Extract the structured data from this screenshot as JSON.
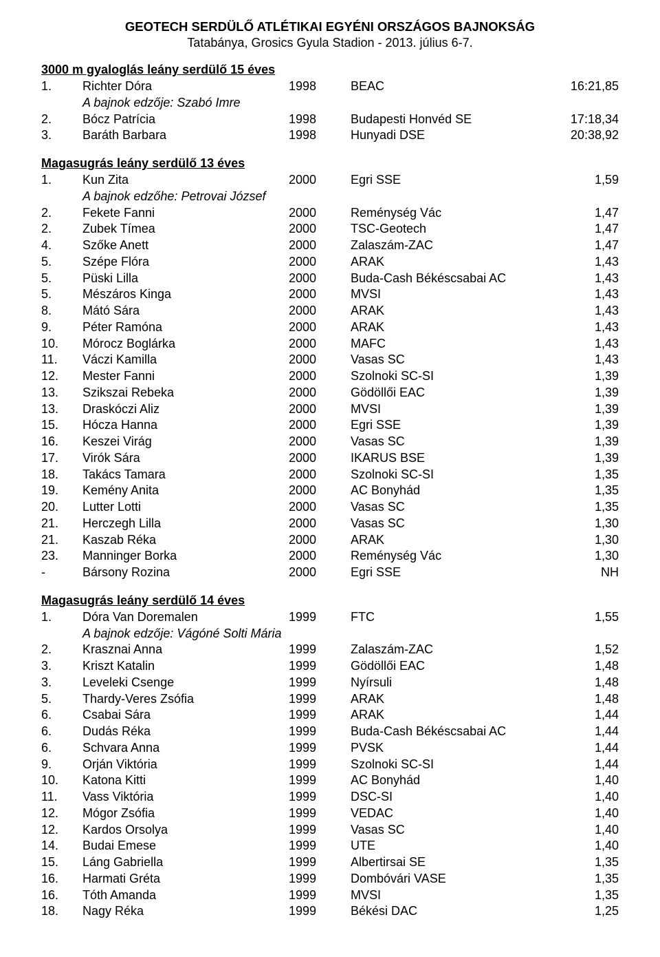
{
  "header": {
    "title": "GEOTECH SERDÜLŐ ATLÉTIKAI EGYÉNI ORSZÁGOS BAJNOKSÁG",
    "subtitle": "Tatabánya, Grosics Gyula Stadion - 2013. július 6-7."
  },
  "sections": [
    {
      "heading": "3000 m gyaloglás leány serdülő 15 éves",
      "rows": [
        {
          "place": "1.",
          "name": "Richter Dóra",
          "year": "1998",
          "club": "BEAC",
          "result": "16:21,85",
          "coach": "A bajnok edzője: Szabó Imre"
        },
        {
          "place": "2.",
          "name": "Bócz Patrícia",
          "year": "1998",
          "club": "Budapesti Honvéd SE",
          "result": "17:18,34"
        },
        {
          "place": "3.",
          "name": "Baráth Barbara",
          "year": "1998",
          "club": "Hunyadi DSE",
          "result": "20:38,92"
        }
      ]
    },
    {
      "heading": "Magasugrás leány serdülő 13 éves",
      "rows": [
        {
          "place": "1.",
          "name": "Kun Zita",
          "year": "2000",
          "club": "Egri SSE",
          "result": "1,59",
          "coach": "A bajnok edzőhe: Petrovai József"
        },
        {
          "place": "2.",
          "name": "Fekete Fanni",
          "year": "2000",
          "club": "Reménység Vác",
          "result": "1,47"
        },
        {
          "place": "2.",
          "name": "Zubek Tímea",
          "year": "2000",
          "club": "TSC-Geotech",
          "result": "1,47"
        },
        {
          "place": "4.",
          "name": "Szőke Anett",
          "year": "2000",
          "club": "Zalaszám-ZAC",
          "result": "1,47"
        },
        {
          "place": "5.",
          "name": "Szépe Flóra",
          "year": "2000",
          "club": "ARAK",
          "result": "1,43"
        },
        {
          "place": "5.",
          "name": "Püski Lilla",
          "year": "2000",
          "club": "Buda-Cash Békéscsabai AC",
          "result": "1,43"
        },
        {
          "place": "5.",
          "name": "Mészáros Kinga",
          "year": "2000",
          "club": "MVSI",
          "result": "1,43"
        },
        {
          "place": "8.",
          "name": "Mátó Sára",
          "year": "2000",
          "club": "ARAK",
          "result": "1,43"
        },
        {
          "place": "9.",
          "name": "Péter Ramóna",
          "year": "2000",
          "club": "ARAK",
          "result": "1,43"
        },
        {
          "place": "10.",
          "name": "Mórocz Boglárka",
          "year": "2000",
          "club": "MAFC",
          "result": "1,43"
        },
        {
          "place": "11.",
          "name": "Váczi Kamilla",
          "year": "2000",
          "club": "Vasas SC",
          "result": "1,43"
        },
        {
          "place": "12.",
          "name": "Mester Fanni",
          "year": "2000",
          "club": "Szolnoki SC-SI",
          "result": "1,39"
        },
        {
          "place": "13.",
          "name": "Szikszai Rebeka",
          "year": "2000",
          "club": "Gödöllői EAC",
          "result": "1,39"
        },
        {
          "place": "13.",
          "name": "Draskóczi Aliz",
          "year": "2000",
          "club": "MVSI",
          "result": "1,39"
        },
        {
          "place": "15.",
          "name": "Hócza Hanna",
          "year": "2000",
          "club": "Egri SSE",
          "result": "1,39"
        },
        {
          "place": "16.",
          "name": "Keszei Virág",
          "year": "2000",
          "club": "Vasas SC",
          "result": "1,39"
        },
        {
          "place": "17.",
          "name": "Virók Sára",
          "year": "2000",
          "club": "IKARUS BSE",
          "result": "1,39"
        },
        {
          "place": "18.",
          "name": "Takács Tamara",
          "year": "2000",
          "club": "Szolnoki SC-SI",
          "result": "1,35"
        },
        {
          "place": "19.",
          "name": "Kemény Anita",
          "year": "2000",
          "club": "AC Bonyhád",
          "result": "1,35"
        },
        {
          "place": "20.",
          "name": "Lutter Lotti",
          "year": "2000",
          "club": "Vasas SC",
          "result": "1,35"
        },
        {
          "place": "21.",
          "name": "Herczegh Lilla",
          "year": "2000",
          "club": "Vasas SC",
          "result": "1,30"
        },
        {
          "place": "21.",
          "name": "Kaszab Réka",
          "year": "2000",
          "club": "ARAK",
          "result": "1,30"
        },
        {
          "place": "23.",
          "name": "Manninger Borka",
          "year": "2000",
          "club": "Reménység Vác",
          "result": "1,30"
        },
        {
          "place": "-",
          "name": "Bársony Rozina",
          "year": "2000",
          "club": "Egri SSE",
          "result": "NH"
        }
      ]
    },
    {
      "heading": "Magasugrás leány serdülő 14 éves",
      "rows": [
        {
          "place": "1.",
          "name": "Dóra Van Doremalen",
          "year": "1999",
          "club": "FTC",
          "result": "1,55",
          "coach": "A bajnok edzője: Vágóné Solti Mária"
        },
        {
          "place": "2.",
          "name": "Krasznai Anna",
          "year": "1999",
          "club": "Zalaszám-ZAC",
          "result": "1,52"
        },
        {
          "place": "3.",
          "name": "Kriszt Katalin",
          "year": "1999",
          "club": "Gödöllői EAC",
          "result": "1,48"
        },
        {
          "place": "3.",
          "name": "Leveleki Csenge",
          "year": "1999",
          "club": "Nyírsuli",
          "result": "1,48"
        },
        {
          "place": "5.",
          "name": "Thardy-Veres Zsófia",
          "year": "1999",
          "club": "ARAK",
          "result": "1,48"
        },
        {
          "place": "6.",
          "name": "Csabai Sára",
          "year": "1999",
          "club": "ARAK",
          "result": "1,44"
        },
        {
          "place": "6.",
          "name": "Dudás Réka",
          "year": "1999",
          "club": "Buda-Cash Békéscsabai AC",
          "result": "1,44"
        },
        {
          "place": "6.",
          "name": "Schvara Anna",
          "year": "1999",
          "club": "PVSK",
          "result": "1,44"
        },
        {
          "place": "9.",
          "name": "Orján Viktória",
          "year": "1999",
          "club": "Szolnoki SC-SI",
          "result": "1,44"
        },
        {
          "place": "10.",
          "name": "Katona Kitti",
          "year": "1999",
          "club": "AC Bonyhád",
          "result": "1,40"
        },
        {
          "place": "11.",
          "name": "Vass Viktória",
          "year": "1999",
          "club": "DSC-SI",
          "result": "1,40"
        },
        {
          "place": "12.",
          "name": "Mógor Zsófia",
          "year": "1999",
          "club": "VEDAC",
          "result": "1,40"
        },
        {
          "place": "12.",
          "name": "Kardos Orsolya",
          "year": "1999",
          "club": "Vasas SC",
          "result": "1,40"
        },
        {
          "place": "14.",
          "name": "Budai Emese",
          "year": "1999",
          "club": "UTE",
          "result": "1,40"
        },
        {
          "place": "15.",
          "name": "Láng Gabriella",
          "year": "1999",
          "club": "Albertirsai SE",
          "result": "1,35"
        },
        {
          "place": "16.",
          "name": "Harmati Gréta",
          "year": "1999",
          "club": "Dombóvári VASE",
          "result": "1,35"
        },
        {
          "place": "16.",
          "name": "Tóth Amanda",
          "year": "1999",
          "club": "MVSI",
          "result": "1,35"
        },
        {
          "place": "18.",
          "name": "Nagy Réka",
          "year": "1999",
          "club": "Békési DAC",
          "result": "1,25"
        }
      ]
    }
  ]
}
